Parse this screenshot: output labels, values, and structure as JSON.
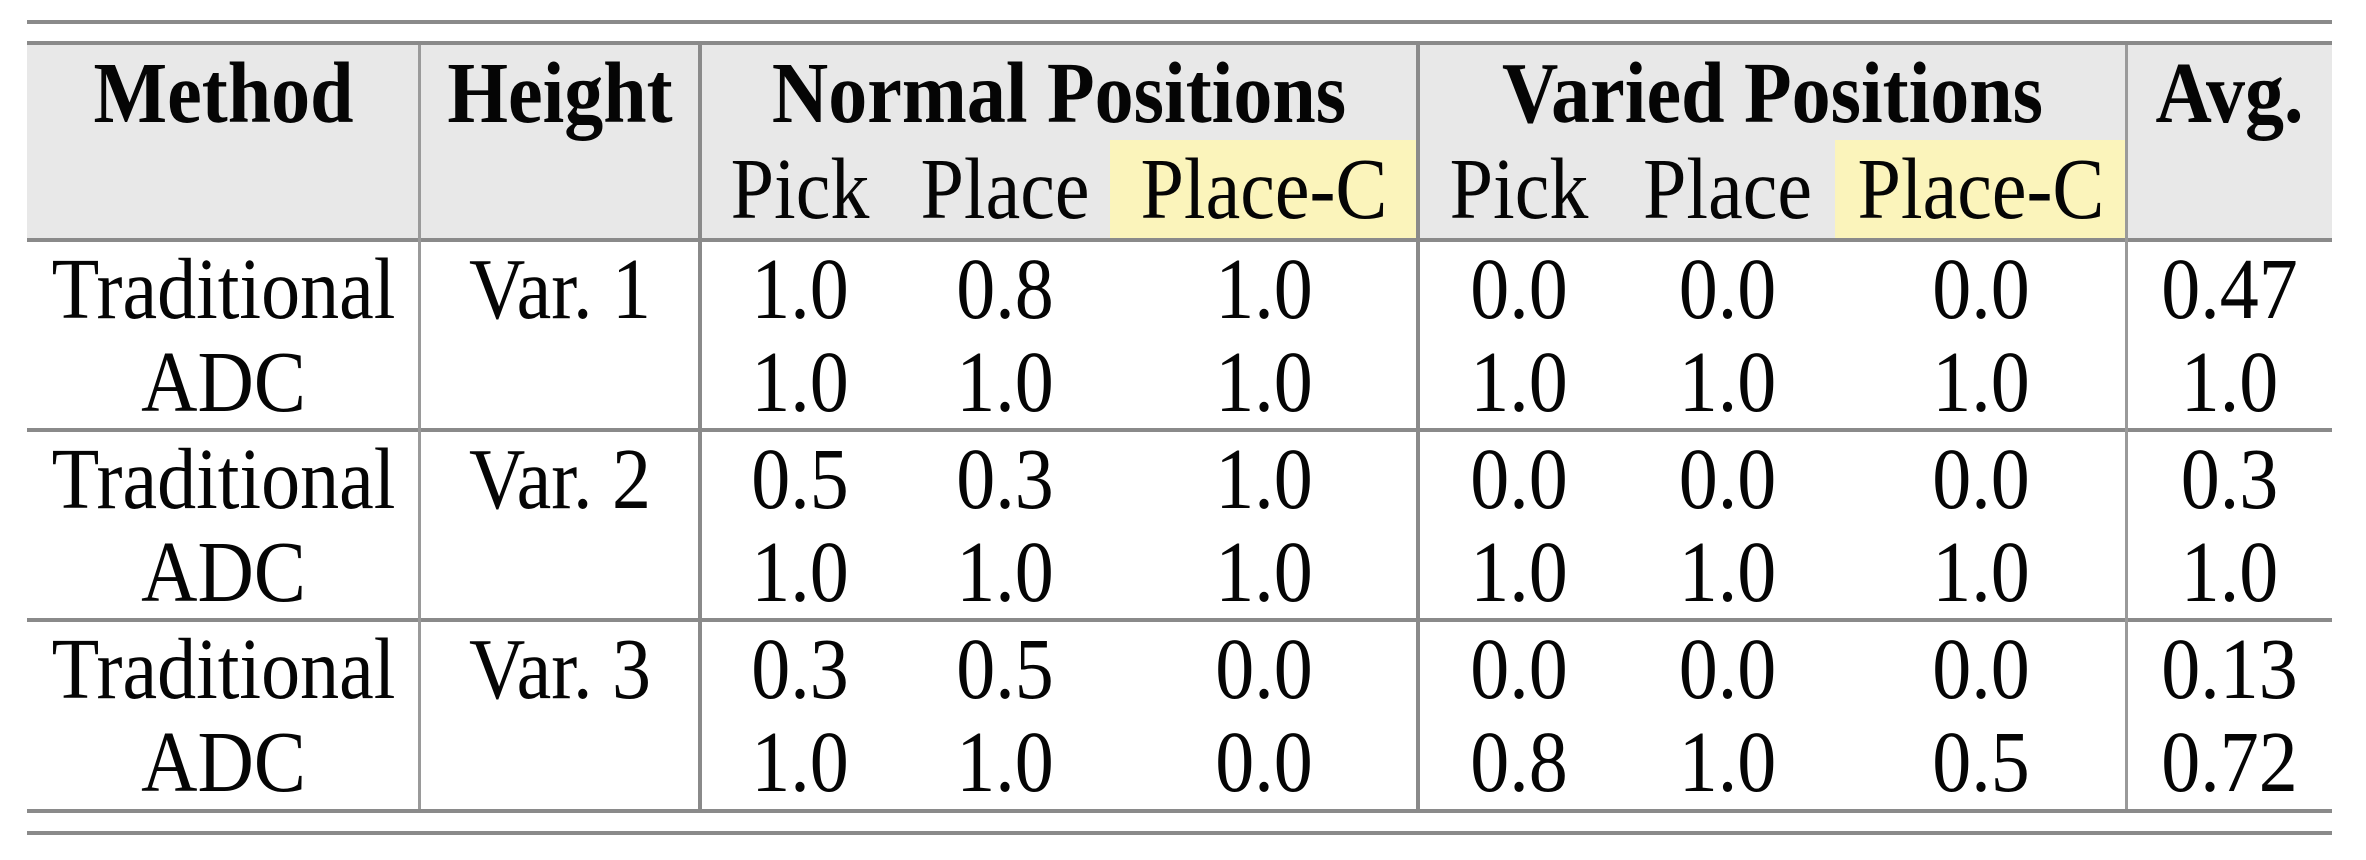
{
  "table": {
    "header": {
      "method": "Method",
      "height": "Height",
      "normal_positions": "Normal Positions",
      "varied_positions": "Varied Positions",
      "avg": "Avg.",
      "normal_sub": [
        "Pick",
        "Place",
        "Place-C"
      ],
      "varied_sub": [
        "Pick",
        "Place",
        "Place-C"
      ]
    },
    "groups": [
      {
        "height": "Var. 1",
        "rows": [
          {
            "method": "Traditional",
            "normal": [
              "1.0",
              "0.8",
              "1.0"
            ],
            "varied": [
              "0.0",
              "0.0",
              "0.0"
            ],
            "avg": "0.47"
          },
          {
            "method": "ADC",
            "normal": [
              "1.0",
              "1.0",
              "1.0"
            ],
            "varied": [
              "1.0",
              "1.0",
              "1.0"
            ],
            "avg": "1.0"
          }
        ]
      },
      {
        "height": "Var. 2",
        "rows": [
          {
            "method": "Traditional",
            "normal": [
              "0.5",
              "0.3",
              "1.0"
            ],
            "varied": [
              "0.0",
              "0.0",
              "0.0"
            ],
            "avg": "0.3"
          },
          {
            "method": "ADC",
            "normal": [
              "1.0",
              "1.0",
              "1.0"
            ],
            "varied": [
              "1.0",
              "1.0",
              "1.0"
            ],
            "avg": "1.0"
          }
        ]
      },
      {
        "height": "Var. 3",
        "rows": [
          {
            "method": "Traditional",
            "normal": [
              "0.3",
              "0.5",
              "0.0"
            ],
            "varied": [
              "0.0",
              "0.0",
              "0.0"
            ],
            "avg": "0.13"
          },
          {
            "method": "ADC",
            "normal": [
              "1.0",
              "1.0",
              "0.0"
            ],
            "varied": [
              "0.8",
              "1.0",
              "0.5"
            ],
            "avg": "0.72"
          }
        ]
      }
    ],
    "colors": {
      "header_bg": "#e8e8e8",
      "highlight_yellow": "#fbf4bb",
      "rule_gray": "#8a8a8a"
    }
  }
}
